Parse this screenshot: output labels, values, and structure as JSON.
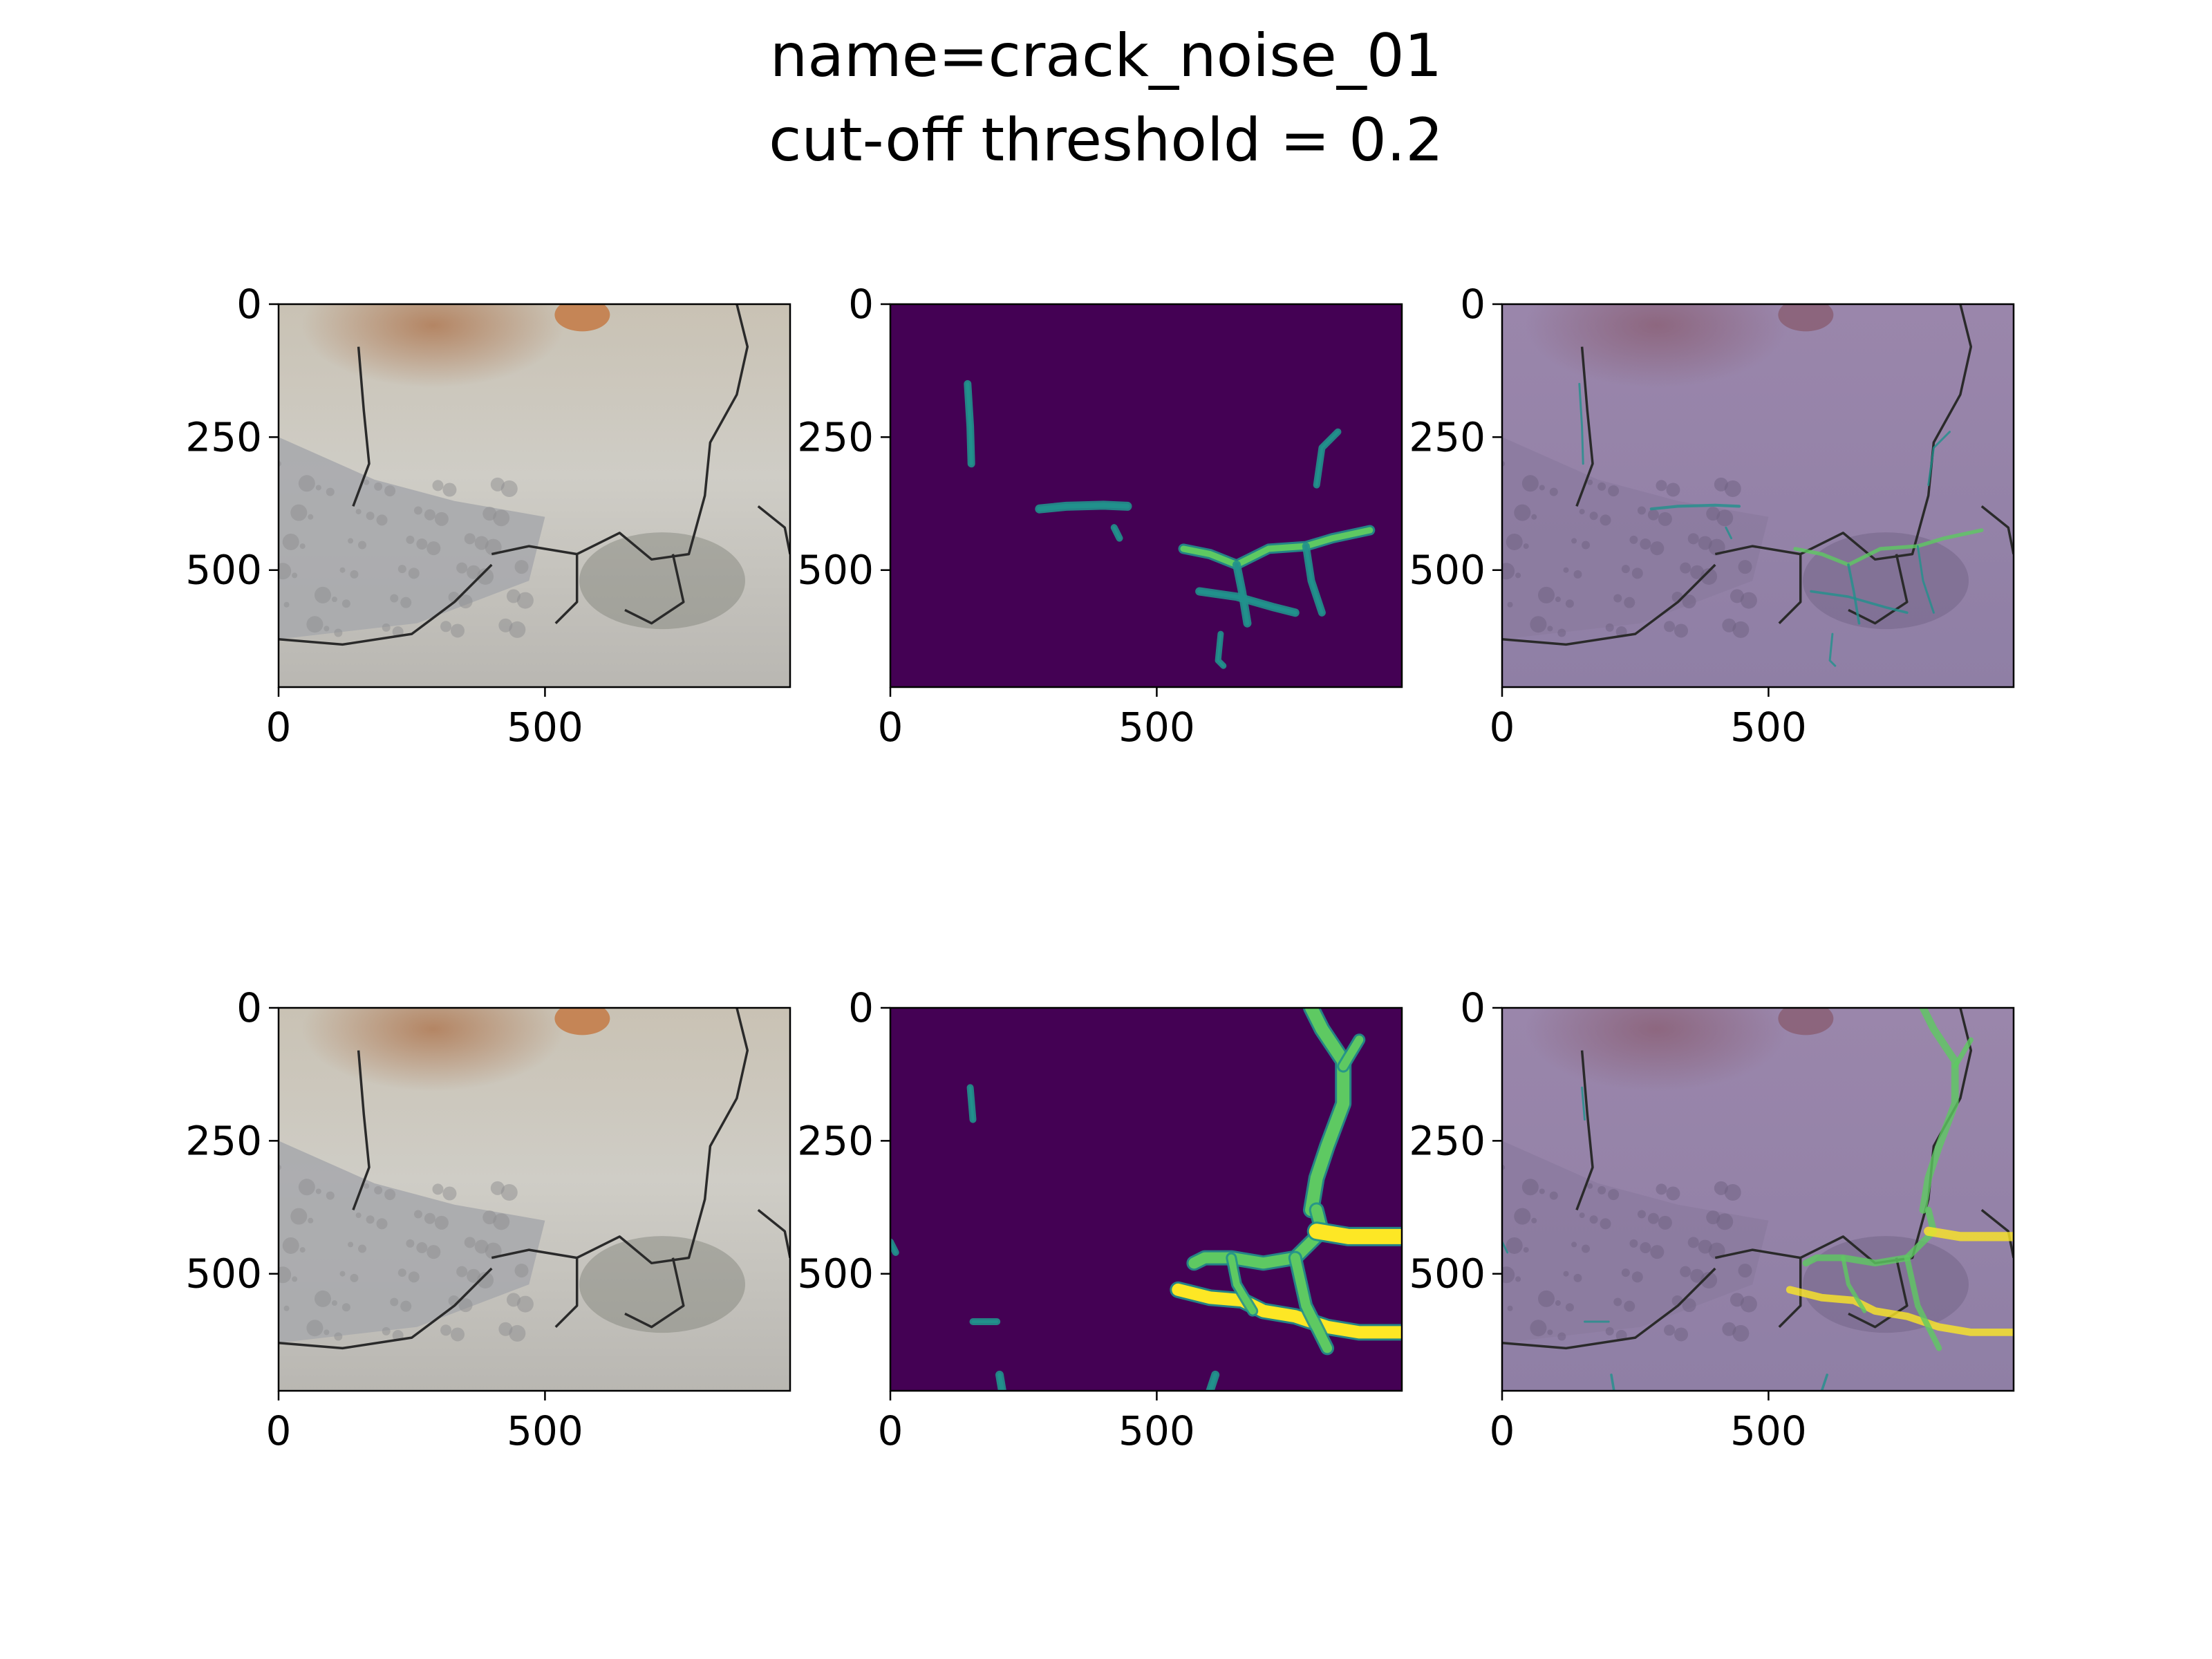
{
  "figure": {
    "title_line1": "name=crack_noise_01",
    "title_line2": "cut-off threshold = 0.2"
  },
  "colors": {
    "viridis_bg": "#440154",
    "viridis_mid": "#21918c",
    "viridis_hi": "#5ec962",
    "viridis_top": "#fde725",
    "overlay_tint": "#a08cb8"
  },
  "chart_data": [
    {
      "type": "heatmap",
      "panel": "row1-col1",
      "content": "photo",
      "xlim": [
        0,
        960
      ],
      "ylim": [
        720,
        0
      ],
      "xticks": [
        0,
        500
      ],
      "yticks": [
        0,
        250,
        500
      ],
      "grid": false
    },
    {
      "type": "heatmap",
      "panel": "row1-col2",
      "content": "crack-probability-map",
      "colormap": "viridis",
      "xlim": [
        0,
        960
      ],
      "ylim": [
        720,
        0
      ],
      "xticks": [
        0,
        500
      ],
      "yticks": [
        0,
        250,
        500
      ],
      "grid": false
    },
    {
      "type": "heatmap",
      "panel": "row1-col3",
      "content": "overlay",
      "xlim": [
        0,
        960
      ],
      "ylim": [
        720,
        0
      ],
      "xticks": [
        0,
        500
      ],
      "yticks": [
        0,
        250,
        500
      ],
      "grid": false
    },
    {
      "type": "heatmap",
      "panel": "row2-col1",
      "content": "photo",
      "xlim": [
        0,
        960
      ],
      "ylim": [
        720,
        0
      ],
      "xticks": [
        0,
        500
      ],
      "yticks": [
        0,
        250,
        500
      ],
      "grid": false
    },
    {
      "type": "heatmap",
      "panel": "row2-col2",
      "content": "crack-probability-map",
      "colormap": "viridis",
      "xlim": [
        0,
        960
      ],
      "ylim": [
        720,
        0
      ],
      "xticks": [
        0,
        500
      ],
      "yticks": [
        0,
        250,
        500
      ],
      "grid": false
    },
    {
      "type": "heatmap",
      "panel": "row2-col3",
      "content": "overlay",
      "xlim": [
        0,
        960
      ],
      "ylim": [
        720,
        0
      ],
      "xticks": [
        0,
        500
      ],
      "yticks": [
        0,
        250,
        500
      ],
      "grid": false
    }
  ]
}
